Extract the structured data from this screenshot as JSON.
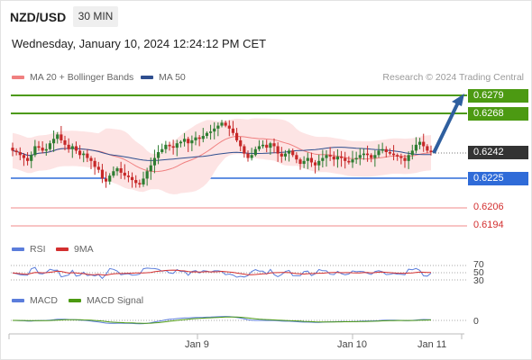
{
  "header": {
    "symbol": "NZD/USD",
    "timeframe_button": "30 MIN",
    "datetime": "Wednesday, January 10, 2024 12:24:12 PM CET"
  },
  "legend": {
    "ma20_label": "MA 20 + Bollinger Bands",
    "ma50_label": "MA 50",
    "credit": "Research © 2024 Trading Central"
  },
  "price_levels": {
    "l1": "0.6279",
    "l2": "0.6268",
    "current": "0.6242",
    "l3": "0.6225",
    "l4": "0.6206",
    "l5": "0.6194"
  },
  "rsi_panel": {
    "label": "RSI",
    "ma_label": "9MA",
    "tick_70": "70",
    "tick_50": "50",
    "tick_30": "30"
  },
  "macd_panel": {
    "label": "MACD",
    "signal_label": "MACD Signal",
    "tick_0": "0"
  },
  "x_axis": {
    "labels": [
      "Jan 9",
      "Jan 10",
      "Jan 11"
    ]
  },
  "colors": {
    "resistance_green": "#4c9a12",
    "support_blue": "#2f6bd8",
    "target_red": "#f4a0a0",
    "current_tag": "#333333",
    "candle_green": "#2e7d32",
    "candle_red": "#c62828",
    "bollinger_fill": "#fde4e4",
    "ma20": "#f08080",
    "ma50": "#2f4f8f",
    "rsi_line": "#5b7ddb",
    "rsi_ma": "#d32f2f",
    "macd_line": "#5b7ddb",
    "macd_signal": "#4c9a12",
    "arrow": "#2f5f9f"
  },
  "chart_data": {
    "type": "candlestick",
    "title": "NZD/USD",
    "timeframe": "30 MIN",
    "y_range": [
      0.619,
      0.6283
    ],
    "x_tick_labels": [
      "Jan 9",
      "Jan 10",
      "Jan 11"
    ],
    "horizontal_levels": [
      {
        "value": 0.6279,
        "kind": "resistance"
      },
      {
        "value": 0.6268,
        "kind": "resistance"
      },
      {
        "value": 0.6242,
        "kind": "current"
      },
      {
        "value": 0.6225,
        "kind": "support"
      },
      {
        "value": 0.6206,
        "kind": "target"
      },
      {
        "value": 0.6194,
        "kind": "target"
      }
    ],
    "projection": {
      "from": 0.6242,
      "to": 0.6279,
      "direction": "up"
    },
    "closes": [
      0.6243,
      0.6242,
      0.624,
      0.6238,
      0.6236,
      0.624,
      0.6246,
      0.6245,
      0.6243,
      0.6244,
      0.6248,
      0.6251,
      0.6254,
      0.625,
      0.6247,
      0.6244,
      0.6246,
      0.6243,
      0.624,
      0.6241,
      0.6238,
      0.6236,
      0.6232,
      0.623,
      0.6224,
      0.6222,
      0.6226,
      0.6229,
      0.6231,
      0.6228,
      0.6226,
      0.6225,
      0.6223,
      0.6221,
      0.622,
      0.6224,
      0.6229,
      0.6233,
      0.6238,
      0.6242,
      0.6244,
      0.6247,
      0.6246,
      0.6245,
      0.6248,
      0.6249,
      0.6251,
      0.6248,
      0.625,
      0.6252,
      0.6251,
      0.6253,
      0.6255,
      0.6256,
      0.6258,
      0.626,
      0.6262,
      0.626,
      0.6258,
      0.6255,
      0.625,
      0.6246,
      0.6241,
      0.6238,
      0.624,
      0.6244,
      0.6246,
      0.6247,
      0.6245,
      0.6248,
      0.6246,
      0.6241,
      0.6239,
      0.6241,
      0.6243,
      0.624,
      0.6237,
      0.6234,
      0.6236,
      0.6238,
      0.6235,
      0.6233,
      0.6236,
      0.6238,
      0.624,
      0.6239,
      0.6237,
      0.6239,
      0.6238,
      0.6236,
      0.6235,
      0.6237,
      0.6238,
      0.624,
      0.6241,
      0.624,
      0.6238,
      0.624,
      0.6243,
      0.6244,
      0.6242,
      0.6241,
      0.624,
      0.6239,
      0.6238,
      0.6236,
      0.624,
      0.6243,
      0.6247,
      0.6249,
      0.6246,
      0.6243,
      0.6242
    ],
    "indicators": {
      "rsi": {
        "levels": [
          70,
          50,
          30
        ]
      },
      "macd": {
        "zero_line": 0
      }
    }
  }
}
